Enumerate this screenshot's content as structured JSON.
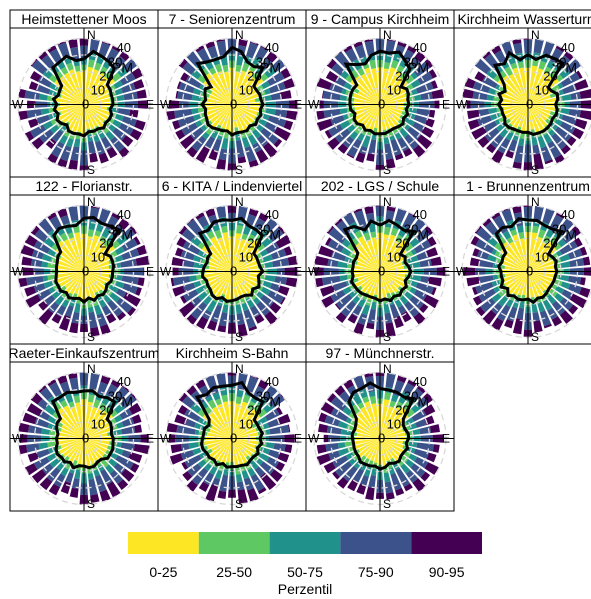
{
  "chart_data": {
    "type": "polar-bar",
    "panels": [
      "Heimstettener Moos",
      "7 - Seniorenzentrum",
      "9 - Campus Kirchheim",
      "Kirchheim Wasserturm",
      "122 - Florianstr.",
      "6 - KITA / Lindenviertel",
      "202 - LGS / Schule",
      "1 - Brunnenzentrum",
      "Raeter-Einkaufszentrum",
      "Kirchheim S-Bahn",
      "97 - Münchnerstr."
    ],
    "directions": [
      "N",
      "E",
      "S",
      "W"
    ],
    "radial_ticks": [
      "0",
      "10",
      "20",
      "30",
      "40"
    ],
    "radial_max": 40,
    "radial_unit": "PM",
    "percentile_bands": [
      "0-25",
      "25-50",
      "50-75",
      "75-90",
      "90-95"
    ],
    "band_colors": [
      "#fde725",
      "#5ec962",
      "#21918c",
      "#3b528b",
      "#440154"
    ],
    "median_line_color": "#000000",
    "legend_title": "Perzentil",
    "legend_position": "bottom"
  }
}
